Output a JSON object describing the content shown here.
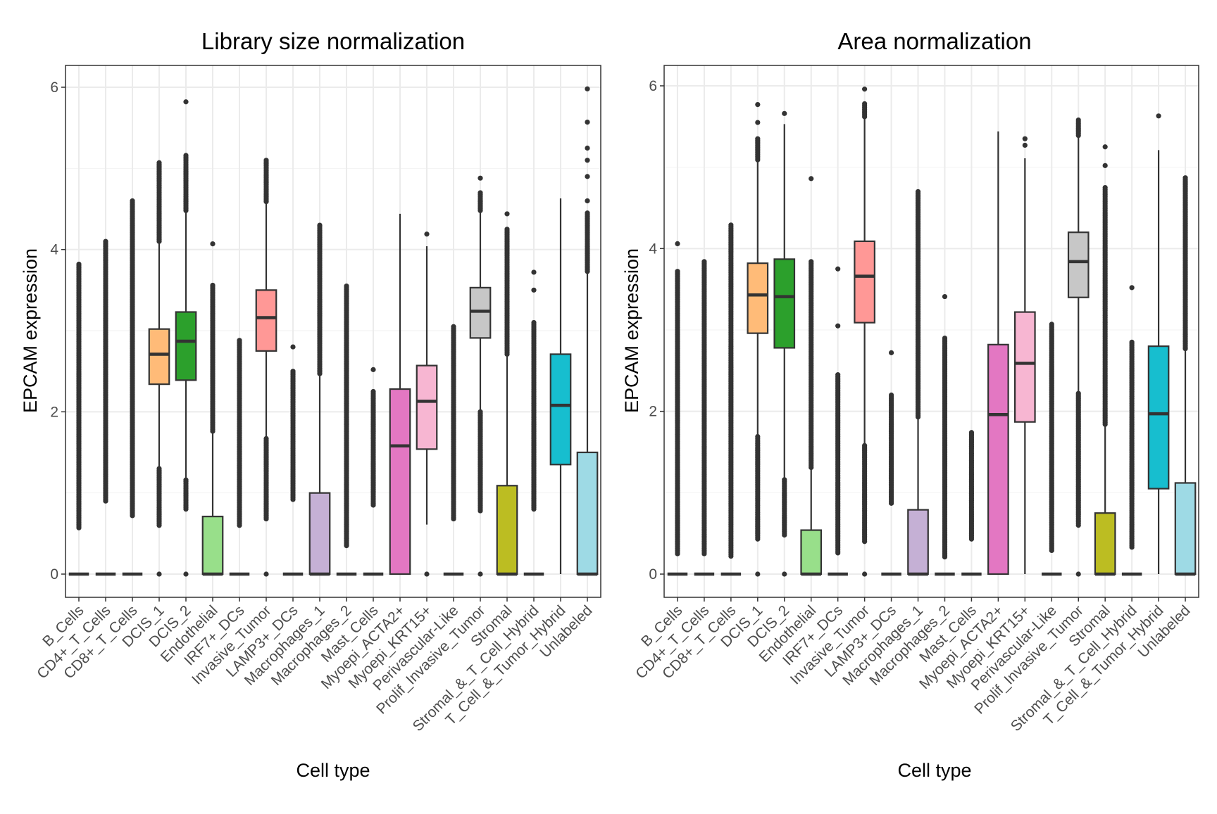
{
  "chart_data": [
    {
      "type": "box",
      "title": "Library size normalization",
      "xlabel": "Cell type",
      "ylabel": "EPCAM expression",
      "ylim": [
        -0.3,
        6.25
      ],
      "yticks": [
        "0",
        "2",
        "4",
        "6"
      ],
      "grid": true,
      "categories": [
        "B_Cells",
        "CD4+_T_Cells",
        "CD8+_T_Cells",
        "DCIS_1",
        "DCIS_2",
        "Endothelial",
        "IRF7+_DCs",
        "Invasive_Tumor",
        "LAMP3+_DCs",
        "Macrophages_1",
        "Macrophages_2",
        "Mast_Cells",
        "Myoepi_ACTA2+",
        "Myoepi_KRT15+",
        "Perivascular-Like",
        "Prolif_Invasive_Tumor",
        "Stromal",
        "Stromal_&_T_Cell_Hybrid",
        "T_Cell_&_Tumor_Hybrid",
        "Unlabeled"
      ],
      "boxes": [
        {
          "q1": 0,
          "median": 0,
          "q3": 0,
          "whisker_low": 0,
          "whisker_high": 0,
          "outlier_ranges": [
            [
              0.57,
              3.82
            ]
          ]
        },
        {
          "q1": 0,
          "median": 0,
          "q3": 0,
          "whisker_low": 0,
          "whisker_high": 0,
          "outlier_ranges": [
            [
              0.9,
              4.1
            ]
          ]
        },
        {
          "q1": 0,
          "median": 0,
          "q3": 0,
          "whisker_low": 0,
          "whisker_high": 0,
          "outlier_ranges": [
            [
              0.72,
              4.6
            ]
          ]
        },
        {
          "q1": 2.34,
          "median": 2.71,
          "q3": 3.02,
          "whisker_low": 1.3,
          "whisker_high": 4.1,
          "outlier_ranges": [
            [
              0.6,
              1.3
            ],
            [
              4.1,
              5.07
            ]
          ],
          "outliers": [
            0
          ]
        },
        {
          "q1": 2.39,
          "median": 2.87,
          "q3": 3.23,
          "whisker_low": 1.16,
          "whisker_high": 4.48,
          "outlier_ranges": [
            [
              0.8,
              1.16
            ],
            [
              4.48,
              5.16
            ]
          ],
          "outliers": [
            0,
            5.82
          ]
        },
        {
          "q1": 0,
          "median": 0,
          "q3": 0.71,
          "whisker_low": 0,
          "whisker_high": 1.76,
          "outlier_ranges": [
            [
              1.76,
              3.56
            ]
          ],
          "outliers": [
            4.07
          ]
        },
        {
          "q1": 0,
          "median": 0,
          "q3": 0,
          "whisker_low": 0,
          "whisker_high": 0,
          "outlier_ranges": [
            [
              0.6,
              2.88
            ]
          ]
        },
        {
          "q1": 2.75,
          "median": 3.16,
          "q3": 3.5,
          "whisker_low": 1.67,
          "whisker_high": 4.59,
          "outlier_ranges": [
            [
              0.68,
              1.67
            ],
            [
              4.59,
              5.1
            ]
          ],
          "outliers": [
            0
          ]
        },
        {
          "q1": 0,
          "median": 0,
          "q3": 0,
          "whisker_low": 0,
          "whisker_high": 0,
          "outlier_ranges": [
            [
              0.92,
              2.5
            ]
          ],
          "outliers": [
            2.8
          ]
        },
        {
          "q1": 0,
          "median": 0,
          "q3": 1.0,
          "whisker_low": 0,
          "whisker_high": 2.47,
          "outlier_ranges": [
            [
              2.47,
              4.3
            ]
          ]
        },
        {
          "q1": 0,
          "median": 0,
          "q3": 0,
          "whisker_low": 0,
          "whisker_high": 0,
          "outlier_ranges": [
            [
              0.35,
              3.55
            ]
          ]
        },
        {
          "q1": 0,
          "median": 0,
          "q3": 0,
          "whisker_low": 0,
          "whisker_high": 0,
          "outlier_ranges": [
            [
              0.85,
              2.25
            ]
          ],
          "outliers": [
            2.52
          ]
        },
        {
          "q1": 0,
          "median": 1.58,
          "q3": 2.28,
          "whisker_low": 0,
          "whisker_high": 4.44,
          "outlier_ranges": []
        },
        {
          "q1": 1.54,
          "median": 2.13,
          "q3": 2.57,
          "whisker_low": 0.61,
          "whisker_high": 4.04,
          "outlier_ranges": [],
          "outliers": [
            0,
            4.19
          ]
        },
        {
          "q1": 0,
          "median": 0,
          "q3": 0,
          "whisker_low": 0,
          "whisker_high": 0,
          "outlier_ranges": [
            [
              0.68,
              3.05
            ]
          ]
        },
        {
          "q1": 2.91,
          "median": 3.24,
          "q3": 3.53,
          "whisker_low": 2.0,
          "whisker_high": 4.48,
          "outlier_ranges": [
            [
              0.78,
              2.0
            ],
            [
              4.48,
              4.7
            ]
          ],
          "outliers": [
            0,
            4.88
          ]
        },
        {
          "q1": 0,
          "median": 0,
          "q3": 1.09,
          "whisker_low": 0,
          "whisker_high": 2.71,
          "outlier_ranges": [
            [
              2.71,
              4.25
            ]
          ],
          "outliers": [
            4.44
          ]
        },
        {
          "q1": 0,
          "median": 0,
          "q3": 0,
          "whisker_low": 0,
          "whisker_high": 0,
          "outlier_ranges": [
            [
              0.8,
              3.1
            ]
          ],
          "outliers": [
            3.5,
            3.72
          ]
        },
        {
          "q1": 1.35,
          "median": 2.08,
          "q3": 2.71,
          "whisker_low": 0,
          "whisker_high": 4.63,
          "outlier_ranges": []
        },
        {
          "q1": 0,
          "median": 0,
          "q3": 1.5,
          "whisker_low": 0,
          "whisker_high": 3.73,
          "outlier_ranges": [
            [
              3.73,
              4.45
            ]
          ],
          "outliers": [
            4.6,
            4.9,
            5.1,
            5.25,
            5.57,
            5.98
          ]
        }
      ]
    },
    {
      "type": "box",
      "title": "Area normalization",
      "xlabel": "Cell type",
      "ylabel": "EPCAM expression",
      "ylim": [
        -0.3,
        6.25
      ],
      "yticks": [
        "0",
        "2",
        "4",
        "6"
      ],
      "grid": true,
      "categories": [
        "B_Cells",
        "CD4+_T_Cells",
        "CD8+_T_Cells",
        "DCIS_1",
        "DCIS_2",
        "Endothelial",
        "IRF7+_DCs",
        "Invasive_Tumor",
        "LAMP3+_DCs",
        "Macrophages_1",
        "Macrophages_2",
        "Mast_Cells",
        "Myoepi_ACTA2+",
        "Myoepi_KRT15+",
        "Perivascular-Like",
        "Prolif_Invasive_Tumor",
        "Stromal",
        "Stromal_&_T_Cell_Hybrid",
        "T_Cell_&_Tumor_Hybrid",
        "Unlabeled"
      ],
      "boxes": [
        {
          "q1": 0,
          "median": 0,
          "q3": 0,
          "whisker_low": 0,
          "whisker_high": 0,
          "outlier_ranges": [
            [
              0.25,
              3.72
            ]
          ],
          "outliers": [
            4.06
          ]
        },
        {
          "q1": 0,
          "median": 0,
          "q3": 0,
          "whisker_low": 0,
          "whisker_high": 0,
          "outlier_ranges": [
            [
              0.25,
              3.84
            ]
          ]
        },
        {
          "q1": 0,
          "median": 0,
          "q3": 0,
          "whisker_low": 0,
          "whisker_high": 0,
          "outlier_ranges": [
            [
              0.22,
              4.29
            ]
          ]
        },
        {
          "q1": 2.96,
          "median": 3.43,
          "q3": 3.82,
          "whisker_low": 1.69,
          "whisker_high": 5.09,
          "outlier_ranges": [
            [
              0.43,
              1.69
            ],
            [
              5.09,
              5.35
            ]
          ],
          "outliers": [
            0,
            5.55,
            5.77
          ]
        },
        {
          "q1": 2.78,
          "median": 3.41,
          "q3": 3.87,
          "whisker_low": 1.16,
          "whisker_high": 5.53,
          "outlier_ranges": [
            [
              0.48,
              1.16
            ]
          ],
          "outliers": [
            0,
            5.66
          ]
        },
        {
          "q1": 0,
          "median": 0,
          "q3": 0.54,
          "whisker_low": 0,
          "whisker_high": 1.31,
          "outlier_ranges": [
            [
              1.31,
              3.84
            ]
          ],
          "outliers": [
            4.86
          ]
        },
        {
          "q1": 0,
          "median": 0,
          "q3": 0,
          "whisker_low": 0,
          "whisker_high": 0,
          "outlier_ranges": [
            [
              0.26,
              2.45
            ]
          ],
          "outliers": [
            3.05,
            3.75
          ]
        },
        {
          "q1": 3.09,
          "median": 3.66,
          "q3": 4.09,
          "whisker_low": 1.58,
          "whisker_high": 5.62,
          "outlier_ranges": [
            [
              0.4,
              1.58
            ],
            [
              5.62,
              5.78
            ]
          ],
          "outliers": [
            0,
            5.96
          ]
        },
        {
          "q1": 0,
          "median": 0,
          "q3": 0,
          "whisker_low": 0,
          "whisker_high": 0,
          "outlier_ranges": [
            [
              0.87,
              2.2
            ]
          ],
          "outliers": [
            2.72
          ]
        },
        {
          "q1": 0,
          "median": 0,
          "q3": 0.79,
          "whisker_low": 0,
          "whisker_high": 1.93,
          "outlier_ranges": [
            [
              1.93,
              4.7
            ]
          ]
        },
        {
          "q1": 0,
          "median": 0,
          "q3": 0,
          "whisker_low": 0,
          "whisker_high": 0,
          "outlier_ranges": [
            [
              0.21,
              2.9
            ]
          ],
          "outliers": [
            3.41
          ]
        },
        {
          "q1": 0,
          "median": 0,
          "q3": 0,
          "whisker_low": 0,
          "whisker_high": 0,
          "outlier_ranges": [
            [
              0.43,
              1.74
            ]
          ]
        },
        {
          "q1": 0,
          "median": 1.96,
          "q3": 2.82,
          "whisker_low": 0,
          "whisker_high": 5.44,
          "outlier_ranges": []
        },
        {
          "q1": 1.87,
          "median": 2.59,
          "q3": 3.22,
          "whisker_low": 0,
          "whisker_high": 5.11,
          "outlier_ranges": [],
          "outliers": [
            5.27,
            5.35
          ]
        },
        {
          "q1": 0,
          "median": 0,
          "q3": 0,
          "whisker_low": 0,
          "whisker_high": 0,
          "outlier_ranges": [
            [
              0.29,
              3.07
            ]
          ]
        },
        {
          "q1": 3.4,
          "median": 3.84,
          "q3": 4.2,
          "whisker_low": 2.22,
          "whisker_high": 5.39,
          "outlier_ranges": [
            [
              0.6,
              2.22
            ],
            [
              5.39,
              5.58
            ]
          ],
          "outliers": [
            0
          ]
        },
        {
          "q1": 0,
          "median": 0,
          "q3": 0.75,
          "whisker_low": 0,
          "whisker_high": 1.84,
          "outlier_ranges": [
            [
              1.84,
              4.75
            ]
          ],
          "outliers": [
            5.02,
            5.25
          ]
        },
        {
          "q1": 0,
          "median": 0,
          "q3": 0,
          "whisker_low": 0,
          "whisker_high": 0,
          "outlier_ranges": [
            [
              0.33,
              2.85
            ]
          ],
          "outliers": [
            3.52
          ]
        },
        {
          "q1": 1.05,
          "median": 1.97,
          "q3": 2.8,
          "whisker_low": 0,
          "whisker_high": 5.21,
          "outlier_ranges": [],
          "outliers": [
            5.63
          ]
        },
        {
          "q1": 0,
          "median": 0,
          "q3": 1.12,
          "whisker_low": 0,
          "whisker_high": 2.77,
          "outlier_ranges": [
            [
              2.77,
              4.87
            ]
          ]
        }
      ]
    }
  ],
  "colors": [
    "#1F77B4",
    "#AEC7E8",
    "#FF7F0E",
    "#FFBB78",
    "#2CA02C",
    "#98DF8A",
    "#D62728",
    "#FF9896",
    "#9467BD",
    "#C5B0D5",
    "#8C564B",
    "#C49C94",
    "#E377C2",
    "#F7B6D2",
    "#7F7F7F",
    "#C7C7C7",
    "#BCBD22",
    "#DBDB8D",
    "#17BECF",
    "#9EDAE5"
  ]
}
